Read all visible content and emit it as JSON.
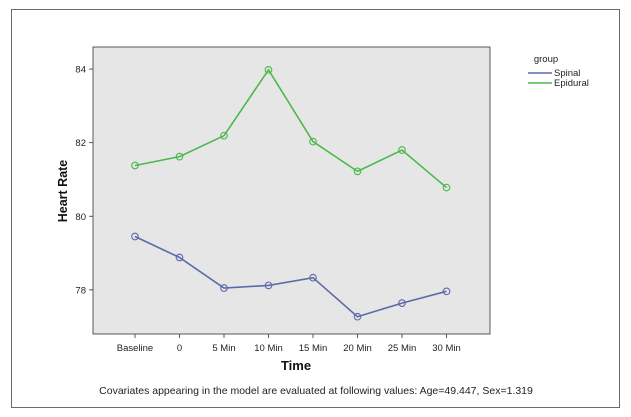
{
  "chart_data": {
    "type": "line",
    "title": "",
    "xlabel": "Time",
    "ylabel": "Heart Rate",
    "categories": [
      "Baseline",
      "0",
      "5 Min",
      "10 Min",
      "15 Min",
      "20 Min",
      "25 Min",
      "30 Min"
    ],
    "ylim": [
      76.8,
      84.6
    ],
    "yticks": [
      78,
      80,
      82,
      84
    ],
    "grid": false,
    "legend_position": "top-right",
    "legend_title": "group",
    "series": [
      {
        "name": "Spinal",
        "color": "#5b6aaa",
        "values": [
          79.45,
          78.88,
          78.05,
          78.12,
          78.33,
          77.27,
          77.64,
          77.96
        ]
      },
      {
        "name": "Epidural",
        "color": "#4cb84c",
        "values": [
          81.38,
          81.62,
          82.19,
          83.98,
          82.03,
          81.22,
          81.8,
          80.78
        ]
      }
    ],
    "footnote": "Covariates appearing in the model are evaluated at following values: Age=49.447, Sex=1.319"
  },
  "colors": {
    "plot_background": "#e6e6e6",
    "frame": "#6b6b6b"
  }
}
